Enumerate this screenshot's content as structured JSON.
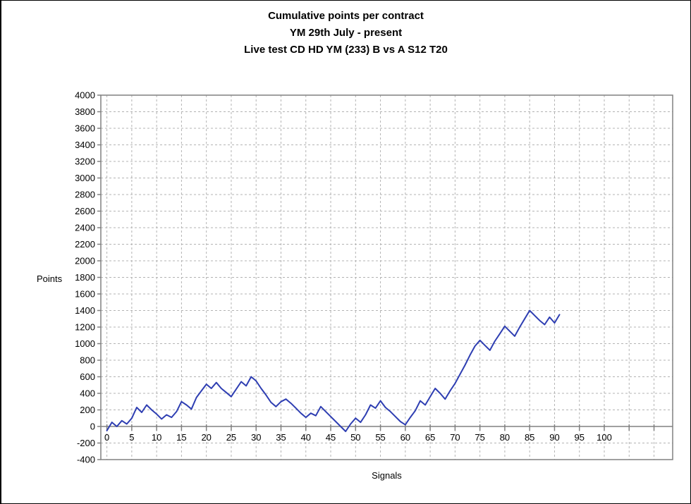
{
  "window": {
    "background": "#ffffff",
    "border_color": "#000000"
  },
  "title": {
    "line1": "Cumulative points per contract",
    "line2": "YM 29th July - present",
    "line3": "Live test CD HD YM (233) B vs A S12 T20"
  },
  "axes": {
    "y_title": "Points",
    "x_title": "Signals"
  },
  "chart_data": {
    "type": "line",
    "title": "Cumulative points per contract / YM 29th July - present / Live test CD HD YM (233) B vs A S12 T20",
    "xlabel": "Signals",
    "ylabel": "Points",
    "ylim": [
      -400,
      4000
    ],
    "y_tick_step": 200,
    "y_ticks": [
      -400,
      -200,
      0,
      200,
      400,
      600,
      800,
      1000,
      1200,
      1400,
      1600,
      1800,
      2000,
      2200,
      2400,
      2600,
      2800,
      3000,
      3200,
      3400,
      3600,
      3800,
      4000
    ],
    "x_ticks_labeled": [
      0,
      5,
      10,
      15,
      20,
      25,
      30,
      35,
      40,
      45,
      50,
      55,
      60,
      65,
      70,
      75,
      80,
      85,
      90,
      95,
      100
    ],
    "x_grid_max": 110,
    "x_tick_step": 5,
    "grid": "dashed",
    "legend": "none",
    "line_color": "#2E3EB2",
    "gridline_color": "#b3b3b3",
    "axis_color": "#808080",
    "x": [
      0,
      1,
      2,
      3,
      4,
      5,
      6,
      7,
      8,
      9,
      10,
      11,
      12,
      13,
      14,
      15,
      16,
      17,
      18,
      19,
      20,
      21,
      22,
      23,
      24,
      25,
      26,
      27,
      28,
      29,
      30,
      31,
      32,
      33,
      34,
      35,
      36,
      37,
      38,
      39,
      40,
      41,
      42,
      43,
      44,
      45,
      46,
      47,
      48,
      49,
      50,
      51,
      52,
      53,
      54,
      55,
      56,
      57,
      58,
      59,
      60,
      61,
      62,
      63,
      64,
      65,
      66,
      67,
      68,
      69,
      70,
      71,
      72,
      73,
      74,
      75,
      76,
      77,
      78,
      79,
      80,
      81,
      82,
      83,
      84,
      85,
      86,
      87,
      88,
      89,
      90,
      91
    ],
    "values": [
      -50,
      50,
      0,
      70,
      30,
      100,
      230,
      170,
      260,
      200,
      150,
      90,
      140,
      110,
      180,
      300,
      260,
      210,
      350,
      430,
      510,
      460,
      530,
      460,
      410,
      360,
      450,
      540,
      490,
      600,
      550,
      460,
      380,
      290,
      240,
      300,
      330,
      280,
      220,
      160,
      110,
      160,
      130,
      240,
      180,
      120,
      60,
      0,
      -60,
      30,
      100,
      50,
      140,
      260,
      220,
      310,
      230,
      180,
      120,
      60,
      20,
      110,
      190,
      310,
      260,
      360,
      460,
      400,
      330,
      430,
      520,
      630,
      740,
      860,
      970,
      1040,
      980,
      920,
      1030,
      1120,
      1210,
      1150,
      1090,
      1200,
      1300,
      1400,
      1340,
      1280,
      1230,
      1320,
      1250,
      1350
    ]
  }
}
